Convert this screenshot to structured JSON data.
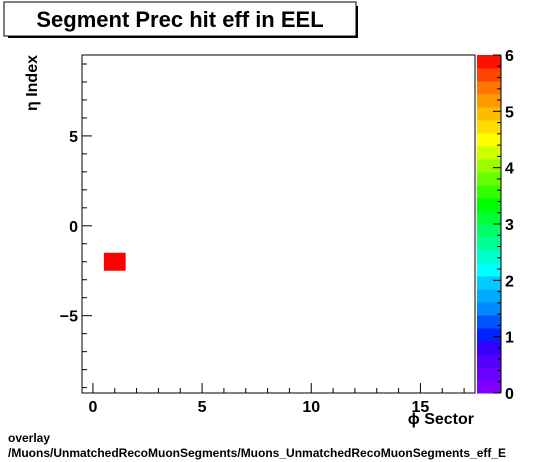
{
  "chart_data": {
    "type": "heatmap",
    "title": "Segment Prec hit eff in EEL",
    "xlabel": "ϕ Sector",
    "ylabel": "η Index",
    "xlim": [
      -0.5,
      17.5
    ],
    "ylim": [
      -9.3,
      9.5
    ],
    "xticks": [
      0,
      5,
      10,
      15
    ],
    "yticks": [
      -5,
      0,
      5
    ],
    "cells": [
      {
        "x": 1,
        "y": -2,
        "z": 6
      }
    ],
    "colorbar": {
      "zlim": [
        0,
        6
      ],
      "ticks": [
        0,
        1,
        2,
        3,
        4,
        5,
        6
      ]
    }
  },
  "footer": {
    "line1": "overlay",
    "line2": "/Muons/UnmatchedRecoMuonSegments/Muons_UnmatchedRecoMuonSegments_eff_E"
  },
  "colors": {
    "frame": "#000000",
    "cell": "#ff0000",
    "palette": [
      "#7f00ff",
      "#6a00ff",
      "#5500ff",
      "#3300ff",
      "#0022ff",
      "#0055ff",
      "#0088ff",
      "#00aaff",
      "#00ccff",
      "#00ffff",
      "#00ffcc",
      "#00ff99",
      "#00ff66",
      "#00ff33",
      "#00ff00",
      "#33ff00",
      "#66ff00",
      "#99ff00",
      "#ccff00",
      "#ffff00",
      "#ffdd00",
      "#ffbb00",
      "#ff9900",
      "#ff7700",
      "#ff4400",
      "#ff1100"
    ]
  }
}
